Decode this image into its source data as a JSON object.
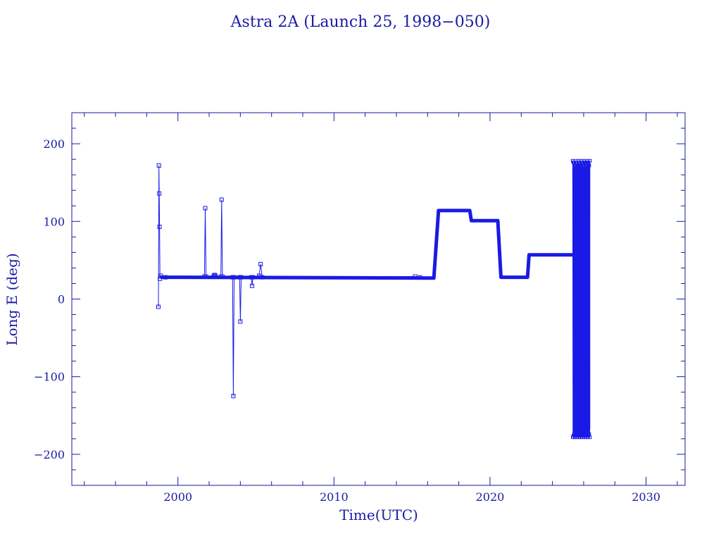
{
  "chart_data": {
    "type": "line",
    "title": "Astra 2A (Launch 25, 1998−050)",
    "xlabel": "Time(UTC)",
    "ylabel": "Long E (deg)",
    "xlim": [
      1993.2,
      2032.5
    ],
    "ylim": [
      -240,
      240
    ],
    "x_ticks": [
      2000,
      2010,
      2020,
      2030
    ],
    "x_tick_labels": [
      "2000",
      "2010",
      "2020",
      "2030"
    ],
    "y_ticks": [
      -200,
      -100,
      0,
      100,
      200
    ],
    "y_tick_labels": [
      "−200",
      "−100",
      "0",
      "100",
      "200"
    ],
    "grid": false,
    "color": "#1a1ae6",
    "series": [
      {
        "style": "thin-markers",
        "points": [
          [
            1998.75,
            -10
          ],
          [
            1998.78,
            172
          ],
          [
            1998.8,
            136
          ],
          [
            1998.82,
            93
          ],
          [
            1998.85,
            26
          ],
          [
            1998.9,
            30
          ],
          [
            1999.2,
            28
          ],
          [
            2001.7,
            29
          ],
          [
            2001.75,
            117
          ],
          [
            2001.8,
            29
          ],
          [
            2002.3,
            30
          ],
          [
            2002.35,
            31
          ],
          [
            2002.4,
            30
          ],
          [
            2002.75,
            29
          ],
          [
            2002.8,
            128
          ],
          [
            2002.85,
            29
          ],
          [
            2003.5,
            28
          ],
          [
            2003.55,
            -125
          ],
          [
            2003.6,
            28
          ],
          [
            2003.95,
            28
          ],
          [
            2004.0,
            -29
          ],
          [
            2004.05,
            28
          ],
          [
            2004.7,
            28
          ],
          [
            2004.75,
            17
          ],
          [
            2004.8,
            28
          ],
          [
            2005.2,
            30
          ],
          [
            2005.3,
            45
          ],
          [
            2005.4,
            28
          ],
          [
            2015.2,
            29
          ],
          [
            2015.5,
            28
          ]
        ]
      },
      {
        "style": "thick",
        "points": [
          [
            1998.9,
            28
          ],
          [
            2016.4,
            27
          ],
          [
            2016.7,
            114
          ],
          [
            2018.7,
            114
          ],
          [
            2018.8,
            101
          ],
          [
            2020.5,
            101
          ],
          [
            2020.7,
            28
          ],
          [
            2022.4,
            28
          ],
          [
            2022.5,
            57
          ],
          [
            2025.3,
            57
          ]
        ]
      },
      {
        "style": "oscillating-band",
        "x_range": [
          2025.3,
          2026.4
        ],
        "y_range": [
          -178,
          178
        ]
      }
    ]
  }
}
